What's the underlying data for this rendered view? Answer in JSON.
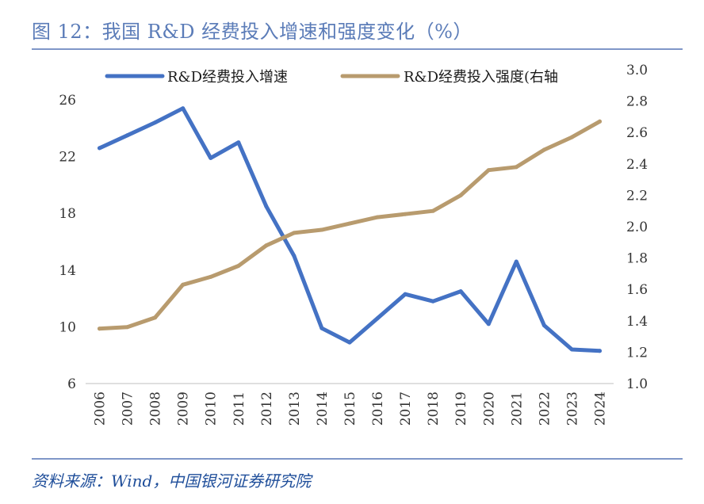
{
  "header": {
    "title": "图 12：我国 R&D 经费投入增速和强度变化（%）"
  },
  "footer": {
    "source": "资料来源：Wind，中国银河证券研究院"
  },
  "colors": {
    "series_growth": "#4472c4",
    "series_intensity": "#b89b6e",
    "title": "#5b7cb8",
    "rule": "#7f96c8",
    "source": "#1f4e9a"
  },
  "chart_data": {
    "type": "line",
    "title": "图 12：我国 R&D 经费投入增速和强度变化（%）",
    "categories": [
      "2006",
      "2007",
      "2008",
      "2009",
      "2010",
      "2011",
      "2012",
      "2013",
      "2014",
      "2015",
      "2016",
      "2017",
      "2018",
      "2019",
      "2020",
      "2021",
      "2022",
      "2023",
      "2024"
    ],
    "series": [
      {
        "name": "R&D经费投入增速",
        "axis": "left",
        "values": [
          22.6,
          23.5,
          24.4,
          25.4,
          21.9,
          23.0,
          18.5,
          15.0,
          9.9,
          8.9,
          10.6,
          12.3,
          11.8,
          12.5,
          10.2,
          14.6,
          10.1,
          8.4,
          8.3
        ]
      },
      {
        "name": "R&D经费投入强度(右轴",
        "axis": "right",
        "values": [
          1.35,
          1.36,
          1.42,
          1.63,
          1.68,
          1.75,
          1.88,
          1.96,
          1.98,
          2.02,
          2.06,
          2.08,
          2.1,
          2.2,
          2.36,
          2.38,
          2.49,
          2.57,
          2.67
        ]
      }
    ],
    "y_left": {
      "ylim": [
        6,
        26
      ],
      "ticks": [
        "6",
        "10",
        "14",
        "18",
        "22",
        "26"
      ]
    },
    "y_right": {
      "ylim": [
        1.0,
        3.0
      ],
      "ticks": [
        "1.0",
        "1.2",
        "1.4",
        "1.6",
        "1.8",
        "2.0",
        "2.2",
        "2.4",
        "2.6",
        "2.8",
        "3.0"
      ]
    },
    "legend_position": "top",
    "grid": false,
    "xlabel": "",
    "ylabel": ""
  }
}
